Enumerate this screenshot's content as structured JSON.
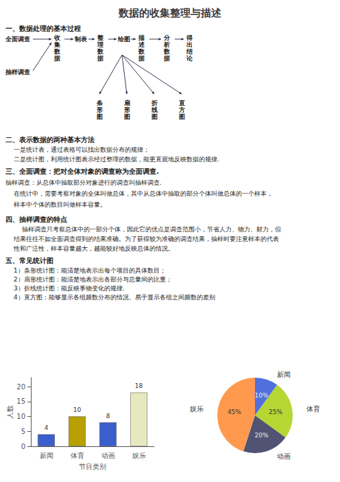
{
  "chart_data": [
    {
      "type": "bar",
      "title": "数据的收集整理与描述",
      "annotations": [
        "一、数据处理的基本过程",
        "全面调查",
        "收集数据",
        "制表",
        "整理数据",
        "绘图",
        "描述数据",
        "分析数据",
        "得出结论",
        "抽样调查",
        "条形图",
        "扇形图",
        "折线图",
        "直方图",
        "二、表示数据的两种基本方法",
        "    一是统计表，通过表格可以找出数据分布的规律；",
        "    二是统计图，利用统计图表示经过整理的数据，能更直观地反映数据的规律.",
        "三、全面调查：把对全体对象的调查称为全面调查.",
        "抽样调查：从总体中抽取部分对象进行的调查叫抽样调查.",
        "    在统计中，需要考察对象的全体叫做总体，其中从总体中抽取的部分个体叫做总体的一个样本，",
        "    样本中个体的数目叫做样本容量。",
        "四、抽样调查的特点",
        "        抽样调查只考察总体中的一部分个体，因此它的优点是调查范围小，节省人力、物力、财力，但",
        "    结果往往不如全面调查得到的结果准确。为了获得较为准确的调查结果，抽样时要注意样本的代表",
        "    性和广泛性，样本容量越大，越能较好地反映总体的情况。",
        "五、常见统计图",
        "    1）条形统计图：能清楚地表示出每个项目的具体数目；",
        "    2）扇形统计图：能清楚地表示出各部分与总量间的比重；",
        "    3）折线统计图：能反映事物变化的规律.",
        "    4）直方图：能够显示各组频数分布的情况、易于显示各组之间频数的差别"
      ],
      "categories": [
        "新闻",
        "体育",
        "动画",
        "娱乐"
      ],
      "values": [
        4,
        10,
        8,
        18
      ],
      "colors": [
        "#3a5fcd",
        "#b8a000",
        "#3a5fcd",
        "#e8e8c0"
      ],
      "xlabel": "节目类别",
      "ylabel": "人数",
      "ylim": [
        0,
        23
      ],
      "yticks": [
        0,
        5,
        10,
        15,
        20
      ],
      "grid": false,
      "data_labels": true
    },
    {
      "type": "pie",
      "categories": [
        "新闻",
        "体育",
        "动画",
        "娱乐"
      ],
      "values": [
        10,
        25,
        20,
        45
      ],
      "value_labels": [
        "10%",
        "25%",
        "20%",
        "45%"
      ],
      "data_labels": true
    }
  ]
}
